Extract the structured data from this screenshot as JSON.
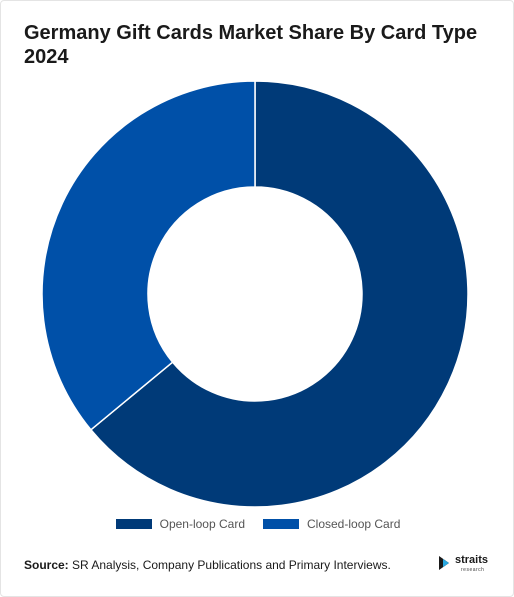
{
  "title": "Germany Gift Cards Market Share By Card Type 2024",
  "chart_data": {
    "type": "pie",
    "donut": true,
    "categories": [
      "Open-loop Card",
      "Closed-loop Card"
    ],
    "values": [
      64,
      36
    ],
    "colors": [
      "#003a78",
      "#0050a8"
    ],
    "legend_placement": "bottom"
  },
  "source": {
    "label": "Source:",
    "text": " SR Analysis, Company Publications and Primary Interviews."
  },
  "logo": {
    "name": "straits",
    "sub": "research",
    "icon": "straits-logo-icon"
  }
}
